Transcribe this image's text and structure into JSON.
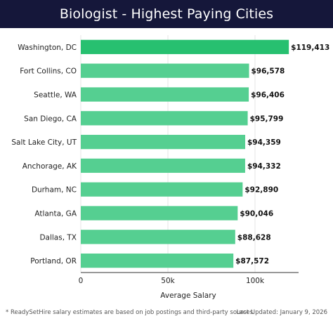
{
  "header": {
    "title": "Biologist - Highest Paying Cities"
  },
  "footer": {
    "footnote": "* ReadySetHire salary estimates are based on job postings and third-party sources.",
    "updated": "Last Updated: January 9, 2026"
  },
  "colors": {
    "header_bg": "#15173a",
    "bar_top": "#27c070",
    "bar": "#55cf91",
    "grid": "#e6e6e6",
    "axis": "#333333"
  },
  "chart_data": {
    "type": "bar",
    "orientation": "horizontal",
    "categories": [
      "Washington, DC",
      "Fort Collins, CO",
      "Seattle, WA",
      "San Diego, CA",
      "Salt Lake City, UT",
      "Anchorage, AK",
      "Durham, NC",
      "Atlanta, GA",
      "Dallas, TX",
      "Portland, OR"
    ],
    "values": [
      119413,
      96578,
      96406,
      95799,
      94359,
      94332,
      92890,
      90046,
      88628,
      87572
    ],
    "value_labels": [
      "$119,413",
      "$96,578",
      "$96,406",
      "$95,799",
      "$94,359",
      "$94,332",
      "$92,890",
      "$90,046",
      "$88,628",
      "$87,572"
    ],
    "xlabel": "Average Salary",
    "ylabel": "",
    "xlim": [
      0,
      125000
    ],
    "xticks": [
      0,
      50000,
      100000
    ],
    "xtick_labels": [
      "0",
      "50k",
      "100k"
    ],
    "grid": "vertical"
  }
}
